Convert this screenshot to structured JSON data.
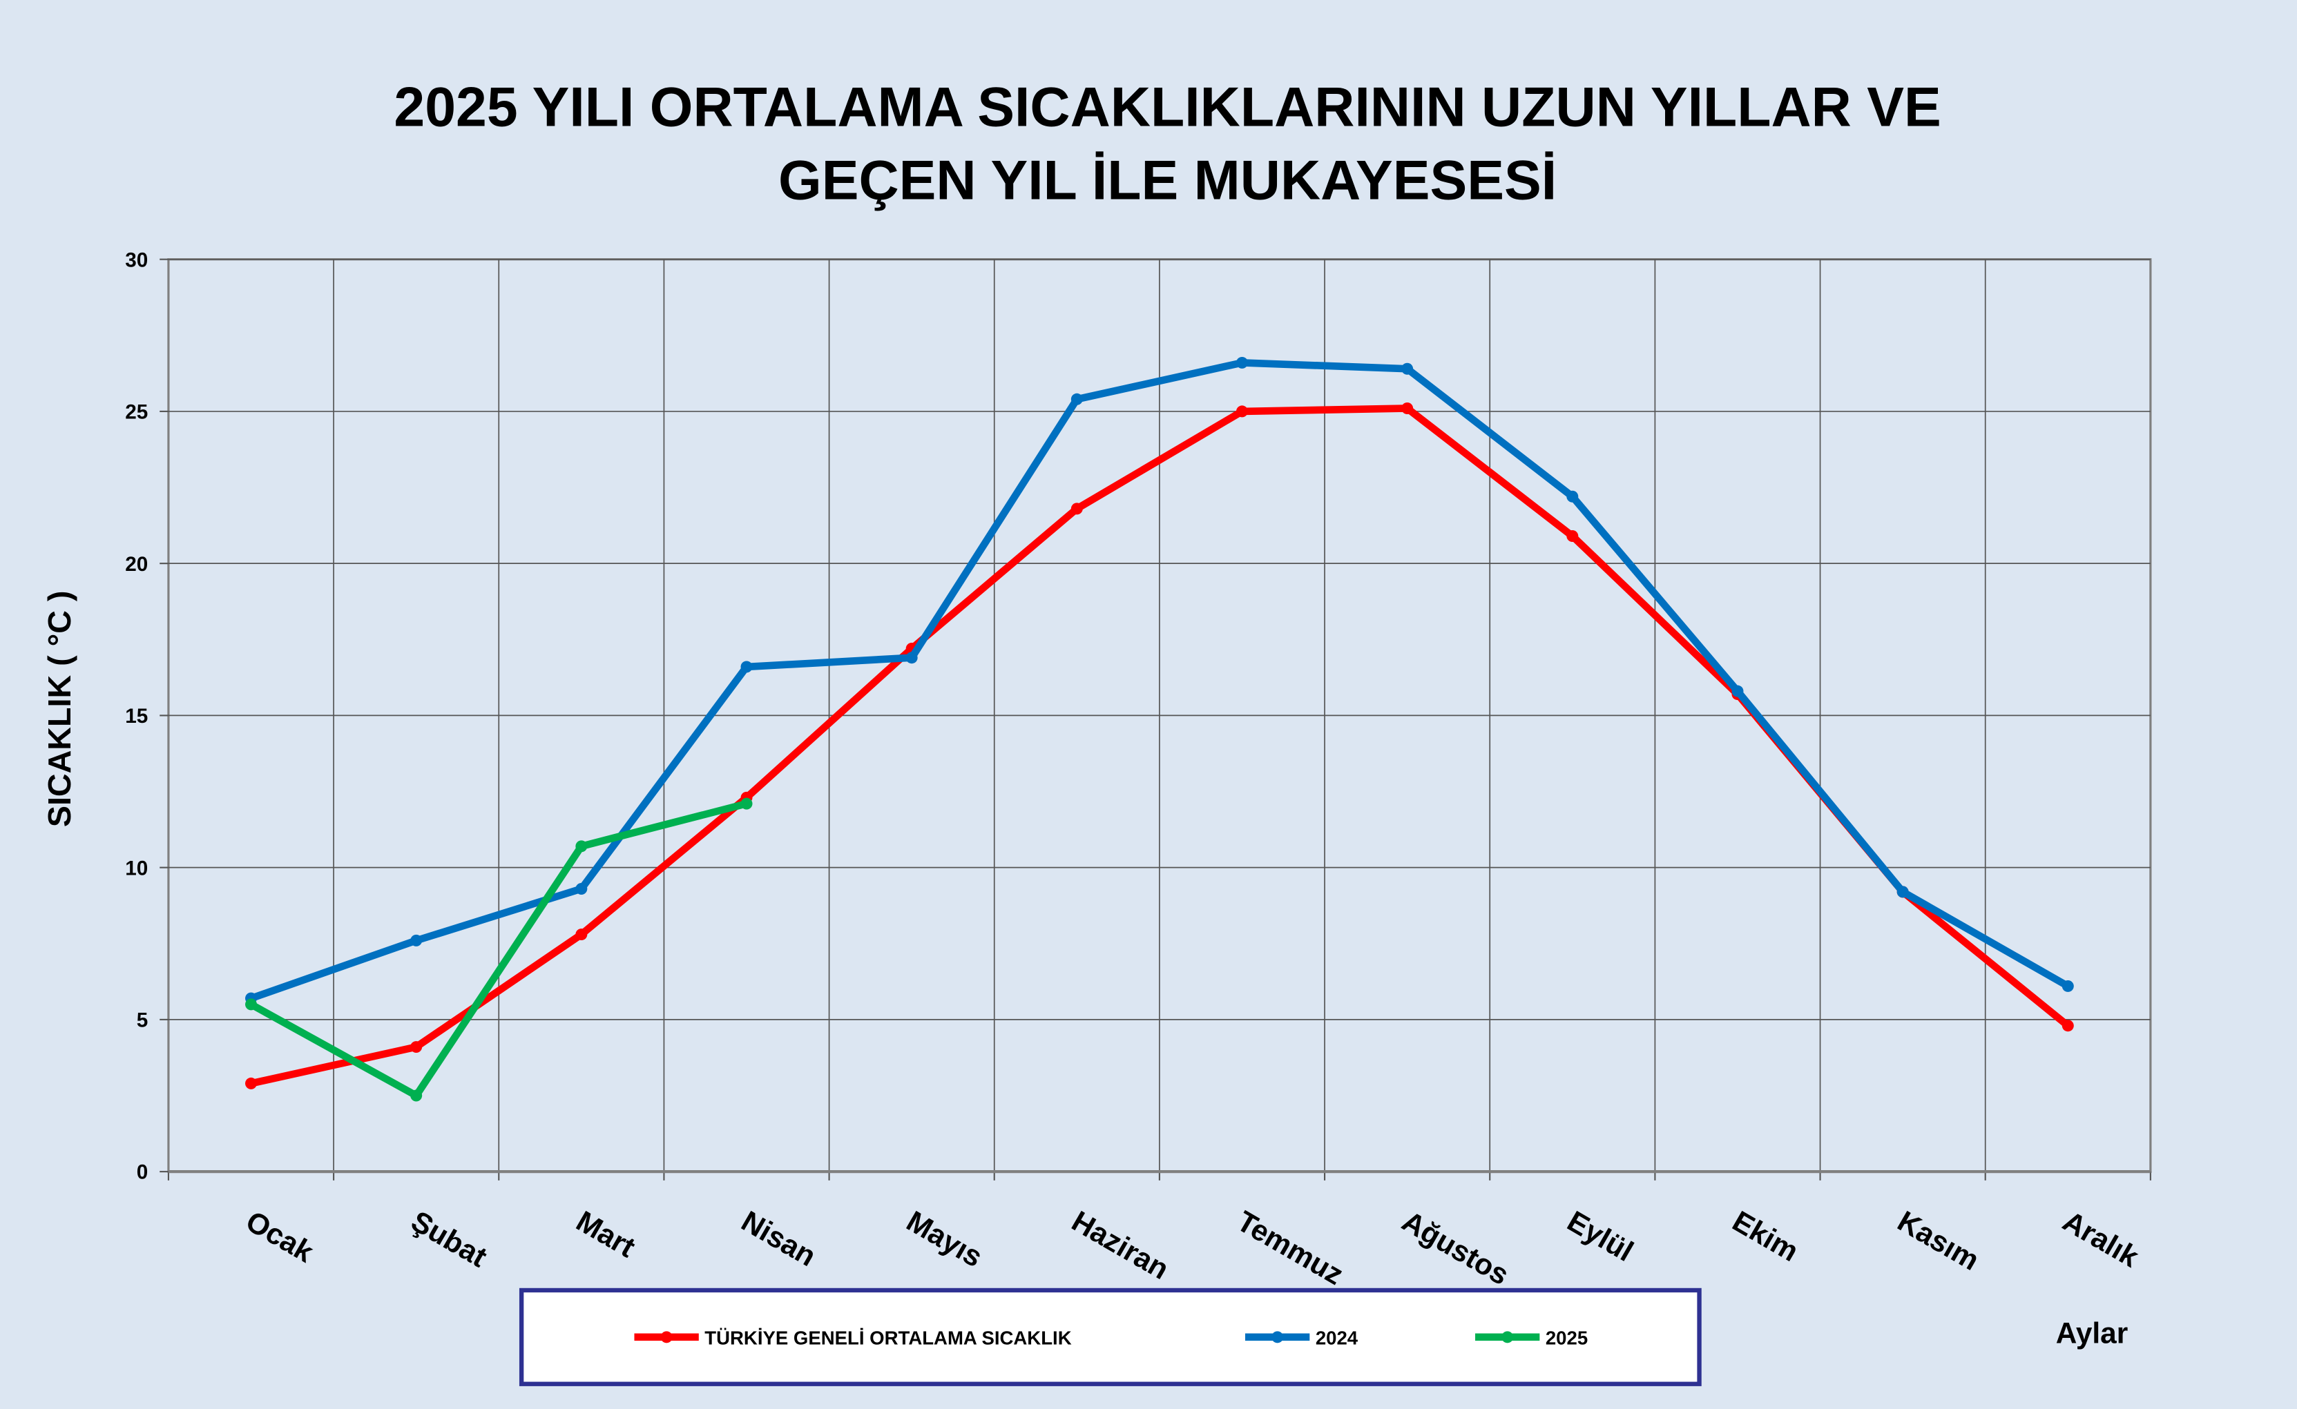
{
  "chart_data": {
    "type": "line",
    "title": [
      "2025 YILI ORTALAMA SICAKLIKLARININ UZUN YILLAR VE",
      "GEÇEN  YIL İLE MUKAYESESİ"
    ],
    "y_label": "SICAKLIK ( °C )",
    "x_label": "Aylar",
    "categories": [
      "Ocak",
      "Şubat",
      "Mart",
      "Nisan",
      "Mayıs",
      "Haziran",
      "Temmuz",
      "Ağustos",
      "Eylül",
      "Ekim",
      "Kasım",
      "Aralık"
    ],
    "series": [
      {
        "name": "TÜRKİYE GENELİ ORTALAMA SICAKLIK",
        "color": "#ff0000",
        "values": [
          2.9,
          4.1,
          7.8,
          12.3,
          17.2,
          21.8,
          25.0,
          25.1,
          20.9,
          15.7,
          9.2,
          4.8
        ]
      },
      {
        "name": "2024",
        "color": "#0070c0",
        "values": [
          5.7,
          7.6,
          9.3,
          16.6,
          16.9,
          25.4,
          26.6,
          26.4,
          22.2,
          15.8,
          9.2,
          6.1
        ]
      },
      {
        "name": "2025",
        "color": "#00b050",
        "values": [
          5.5,
          2.5,
          10.7,
          12.1,
          null,
          null,
          null,
          null,
          null,
          null,
          null,
          null
        ]
      }
    ],
    "ylim": [
      0,
      30
    ],
    "yticks": [
      0,
      5,
      10,
      15,
      20,
      25,
      30
    ],
    "grid": true,
    "legend": "bottom"
  }
}
